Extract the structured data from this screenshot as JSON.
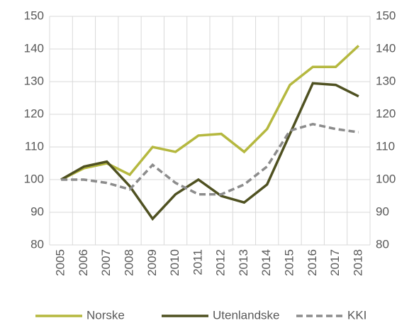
{
  "chart_data": {
    "type": "line",
    "categories": [
      "2005",
      "2006",
      "2007",
      "2008",
      "2009",
      "2010",
      "2011",
      "2012",
      "2013",
      "2014",
      "2015",
      "2016",
      "2017",
      "2018"
    ],
    "series": [
      {
        "name": "Norske",
        "color": "#b5b83f",
        "values": [
          100,
          103.5,
          105,
          101.5,
          110,
          108.5,
          113.5,
          114,
          108.5,
          115.5,
          129,
          134.5,
          134.5,
          141
        ]
      },
      {
        "name": "Utenlandske",
        "color": "#4f5121",
        "values": [
          100,
          104,
          105.5,
          98,
          88,
          95.5,
          100,
          95,
          93,
          98.5,
          114,
          129.5,
          129,
          125.5
        ]
      },
      {
        "name": "KKI",
        "color": "#8c8c8c",
        "dashed": true,
        "values": [
          100,
          100,
          99,
          97,
          104.5,
          99,
          95.5,
          95.5,
          98.5,
          104,
          115,
          117,
          115.5,
          114.5
        ]
      }
    ],
    "ylim": [
      80,
      150
    ],
    "yticks": [
      80,
      90,
      100,
      110,
      120,
      130,
      140,
      150
    ],
    "y2lim": [
      80,
      150
    ],
    "y2ticks": [
      80,
      90,
      100,
      110,
      120,
      130,
      140,
      150
    ],
    "grid": true,
    "legend": "bottom"
  }
}
